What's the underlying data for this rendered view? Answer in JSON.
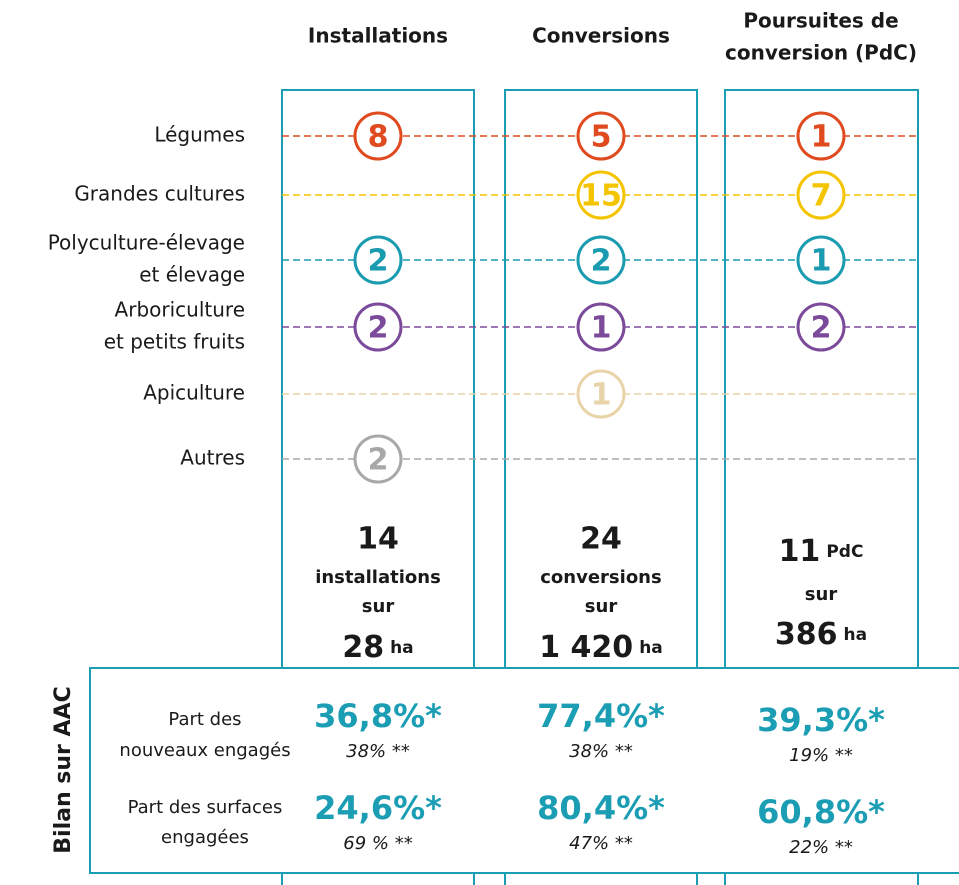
{
  "columns": [
    {
      "header": [
        "Installations"
      ],
      "counts": [
        8,
        null,
        2,
        2,
        null,
        2
      ],
      "total": {
        "number": "14",
        "noun": "installations",
        "sur": "sur",
        "area": "28",
        "unit": "ha"
      },
      "bilan": [
        {
          "main": "36,8%*",
          "sub": "38% **"
        },
        {
          "main": "24,6%*",
          "sub": "69 % **"
        }
      ]
    },
    {
      "header": [
        "Conversions"
      ],
      "counts": [
        5,
        15,
        2,
        1,
        1,
        null
      ],
      "total": {
        "number": "24",
        "noun": "conversions",
        "sur": "sur",
        "area": "1 420",
        "unit": "ha"
      },
      "bilan": [
        {
          "main": "77,4%*",
          "sub": "38% **"
        },
        {
          "main": "80,4%*",
          "sub": "47% **"
        }
      ]
    },
    {
      "header": [
        "Poursuites de",
        "conversion (PdC)"
      ],
      "counts": [
        1,
        7,
        1,
        2,
        null,
        null
      ],
      "total": {
        "number": "11",
        "noun": "PdC",
        "sur": "sur",
        "area": "386",
        "unit": "ha"
      },
      "bilan": [
        {
          "main": "39,3%*",
          "sub": "19% **"
        },
        {
          "main": "60,8%*",
          "sub": "22% **"
        }
      ]
    }
  ],
  "rows": [
    {
      "label": [
        "Légumes"
      ],
      "color": "#e04a1f"
    },
    {
      "label": [
        "Grandes cultures"
      ],
      "color": "#f5c400"
    },
    {
      "label": [
        "Polyculture-élevage",
        "et élevage"
      ],
      "color": "#1a9bb0"
    },
    {
      "label": [
        "Arboriculture",
        "et petits fruits"
      ],
      "color": "#7b4a9a"
    },
    {
      "label": [
        "Apiculture"
      ],
      "color": "#e8d4a8"
    },
    {
      "label": [
        "Autres"
      ],
      "color": "#a8a8a8"
    }
  ],
  "bilan": {
    "title": "Bilan sur AAC",
    "color": "#1b9db4",
    "rows": [
      {
        "label": [
          "Part des",
          "nouveaux engagés"
        ]
      },
      {
        "label": [
          "Part des surfaces",
          "engagées"
        ]
      }
    ]
  }
}
